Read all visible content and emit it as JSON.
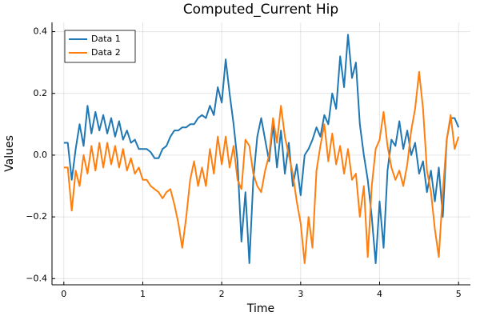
{
  "chart_data": {
    "type": "line",
    "title": "Computed_Current Hip",
    "xlabel": "Time",
    "ylabel": "Values",
    "x": [
      0,
      0.05,
      0.1,
      0.15,
      0.2,
      0.25,
      0.3,
      0.35,
      0.4,
      0.45,
      0.5,
      0.55,
      0.6,
      0.65,
      0.7,
      0.75,
      0.8,
      0.85,
      0.9,
      0.95,
      1,
      1.05,
      1.1,
      1.15,
      1.2,
      1.25,
      1.3,
      1.35,
      1.4,
      1.45,
      1.5,
      1.55,
      1.6,
      1.65,
      1.7,
      1.75,
      1.8,
      1.85,
      1.9,
      1.95,
      2,
      2.05,
      2.1,
      2.15,
      2.2,
      2.25,
      2.3,
      2.35,
      2.4,
      2.45,
      2.5,
      2.55,
      2.6,
      2.65,
      2.7,
      2.75,
      2.8,
      2.85,
      2.9,
      2.95,
      3,
      3.05,
      3.1,
      3.15,
      3.2,
      3.25,
      3.3,
      3.35,
      3.4,
      3.45,
      3.5,
      3.55,
      3.6,
      3.65,
      3.7,
      3.75,
      3.8,
      3.85,
      3.9,
      3.95,
      4,
      4.05,
      4.1,
      4.15,
      4.2,
      4.25,
      4.3,
      4.35,
      4.4,
      4.45,
      4.5,
      4.55,
      4.6,
      4.65,
      4.7,
      4.75,
      4.8,
      4.85,
      4.9,
      4.95,
      5
    ],
    "series": [
      {
        "name": "Data 1",
        "color": "#1f77b4",
        "values": [
          0.04,
          0.04,
          -0.08,
          0.02,
          0.1,
          0.03,
          0.16,
          0.07,
          0.14,
          0.08,
          0.13,
          0.07,
          0.12,
          0.06,
          0.11,
          0.05,
          0.08,
          0.04,
          0.05,
          0.02,
          0.02,
          0.02,
          0.01,
          -0.01,
          -0.01,
          0.02,
          0.03,
          0.06,
          0.08,
          0.08,
          0.09,
          0.09,
          0.1,
          0.1,
          0.12,
          0.13,
          0.12,
          0.16,
          0.13,
          0.22,
          0.17,
          0.31,
          0.2,
          0.1,
          -0.02,
          -0.28,
          -0.12,
          -0.35,
          -0.08,
          0.06,
          0.12,
          0.05,
          -0.02,
          0.1,
          -0.04,
          0.08,
          -0.06,
          0.04,
          -0.1,
          -0.03,
          -0.13,
          0,
          0.02,
          0.05,
          0.09,
          0.06,
          0.13,
          0.1,
          0.2,
          0.15,
          0.32,
          0.22,
          0.39,
          0.25,
          0.3,
          0.1,
          0,
          -0.08,
          -0.2,
          -0.35,
          -0.15,
          -0.3,
          -0.05,
          0.05,
          0.03,
          0.11,
          0.02,
          0.08,
          0,
          0.04,
          -0.06,
          -0.02,
          -0.12,
          -0.05,
          -0.15,
          -0.04,
          -0.2,
          0.05,
          0.12,
          0.12,
          0.09
        ]
      },
      {
        "name": "Data 2",
        "color": "#ff7f0e",
        "values": [
          -0.04,
          -0.04,
          -0.18,
          -0.05,
          -0.1,
          0,
          -0.06,
          0.03,
          -0.05,
          0.04,
          -0.04,
          0.04,
          -0.03,
          0.03,
          -0.04,
          0.02,
          -0.05,
          -0.01,
          -0.06,
          -0.04,
          -0.08,
          -0.08,
          -0.1,
          -0.11,
          -0.12,
          -0.14,
          -0.12,
          -0.11,
          -0.16,
          -0.22,
          -0.3,
          -0.2,
          -0.08,
          -0.02,
          -0.1,
          -0.04,
          -0.1,
          0.02,
          -0.06,
          0.06,
          -0.03,
          0.06,
          -0.04,
          0.03,
          -0.08,
          -0.11,
          0.05,
          0.03,
          -0.06,
          -0.1,
          -0.12,
          -0.05,
          0,
          0.12,
          0.04,
          0.16,
          0.06,
          0,
          -0.06,
          -0.15,
          -0.22,
          -0.35,
          -0.2,
          -0.3,
          -0.05,
          0.03,
          0.1,
          -0.02,
          0.07,
          -0.03,
          0.03,
          -0.06,
          0.02,
          -0.08,
          -0.06,
          -0.2,
          -0.1,
          -0.33,
          -0.1,
          0.02,
          0.05,
          0.14,
          0.03,
          -0.04,
          -0.08,
          -0.05,
          -0.1,
          -0.03,
          0.08,
          0.15,
          0.27,
          0.15,
          -0.05,
          -0.12,
          -0.24,
          -0.33,
          -0.12,
          0.05,
          0.13,
          0.02,
          0.06
        ]
      }
    ],
    "xlim": [
      -0.15,
      5.15
    ],
    "ylim": [
      -0.42,
      0.43
    ],
    "xticks": [
      0,
      1,
      2,
      3,
      4,
      5
    ],
    "yticks": [
      {
        "value": -0.4,
        "label": "−0.4"
      },
      {
        "value": -0.2,
        "label": "−0.2"
      },
      {
        "value": 0,
        "label": "0.0"
      },
      0.2,
      0.4
    ],
    "grid": true,
    "legend": "top-left"
  }
}
